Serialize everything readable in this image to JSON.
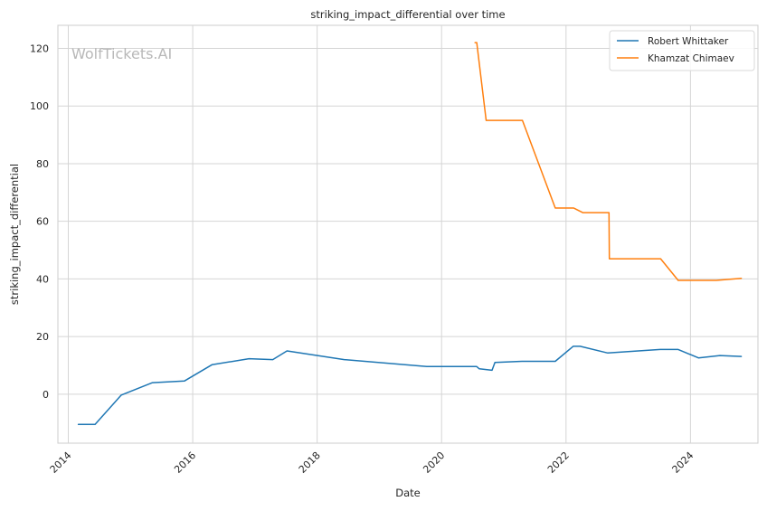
{
  "chart_data": {
    "type": "line",
    "title": "striking_impact_differential over time",
    "xlabel": "Date",
    "ylabel": "striking_impact_differential",
    "watermark": "WolfTickets.AI",
    "xlim": [
      "2013-11-01",
      "2025-02-01"
    ],
    "ylim": [
      -17,
      128
    ],
    "xticks": [
      "2014",
      "2016",
      "2018",
      "2020",
      "2022",
      "2024"
    ],
    "yticks": [
      0,
      20,
      40,
      60,
      80,
      100,
      120
    ],
    "grid": true,
    "legend_position": "top-right",
    "series": [
      {
        "name": "Robert Whittaker",
        "color": "#1f77b4",
        "points": [
          [
            "2014-03-01",
            -10.5
          ],
          [
            "2014-06-07",
            -10.5
          ],
          [
            "2014-11-08",
            -0.3
          ],
          [
            "2015-05-10",
            4.0
          ],
          [
            "2015-11-14",
            4.6
          ],
          [
            "2016-04-23",
            10.2
          ],
          [
            "2016-11-27",
            12.3
          ],
          [
            "2017-04-16",
            12.0
          ],
          [
            "2017-07-08",
            15.0
          ],
          [
            "2018-06-09",
            12.0
          ],
          [
            "2019-10-06",
            9.6
          ],
          [
            "2020-07-25",
            9.6
          ],
          [
            "2020-08-10",
            8.8
          ],
          [
            "2020-10-24",
            8.3
          ],
          [
            "2020-11-10",
            11.0
          ],
          [
            "2021-04-17",
            11.4
          ],
          [
            "2021-10-30",
            11.4
          ],
          [
            "2022-02-12",
            16.6
          ],
          [
            "2022-03-25",
            16.6
          ],
          [
            "2022-09-03",
            14.3
          ],
          [
            "2023-07-08",
            15.5
          ],
          [
            "2023-10-21",
            15.5
          ],
          [
            "2024-02-17",
            12.6
          ],
          [
            "2024-06-22",
            13.4
          ],
          [
            "2024-10-26",
            13.1
          ]
        ]
      },
      {
        "name": "Khamzat Chimaev",
        "color": "#ff7f0e",
        "points": [
          [
            "2020-07-16",
            122.0
          ],
          [
            "2020-07-26",
            122.0
          ],
          [
            "2020-09-19",
            95.0
          ],
          [
            "2021-04-20",
            95.0
          ],
          [
            "2021-10-30",
            64.6
          ],
          [
            "2022-02-15",
            64.6
          ],
          [
            "2022-04-09",
            63.0
          ],
          [
            "2022-09-10",
            63.0
          ],
          [
            "2022-09-12",
            47.0
          ],
          [
            "2023-07-10",
            47.0
          ],
          [
            "2023-10-21",
            39.5
          ],
          [
            "2024-06-01",
            39.5
          ],
          [
            "2024-10-26",
            40.2
          ]
        ]
      }
    ]
  }
}
